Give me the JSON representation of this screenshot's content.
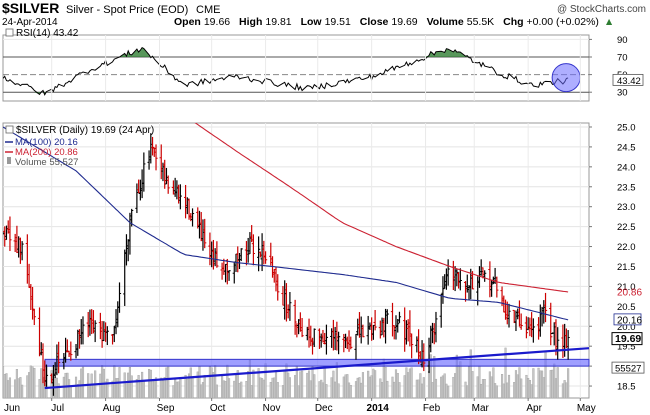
{
  "header": {
    "symbol": "$SILVER",
    "name": "Silver - Spot Price (EOD)",
    "exchange": "CME",
    "copyright": "@ StockCharts.com",
    "date": "24-Apr-2014",
    "quote": [
      {
        "label": "Open",
        "value": "19.66"
      },
      {
        "label": "High",
        "value": "19.81"
      },
      {
        "label": "Low",
        "value": "19.51"
      },
      {
        "label": "Close",
        "value": "19.69"
      },
      {
        "label": "Volume",
        "value": "55.5K"
      },
      {
        "label": "Chg",
        "value": "+0.00 (+0.02%)"
      }
    ],
    "chg_arrow": "▲"
  },
  "rsi_panel": {
    "label": "RSI(14) 43.42",
    "value_tag": "43.42",
    "ticks": [
      90,
      70,
      50,
      30
    ],
    "levels": {
      "overbought": 70,
      "oversold": 30,
      "mid": 50
    },
    "fill_color": "#2e7d32",
    "line_color": "#000000"
  },
  "price_panel": {
    "legend": [
      {
        "text": "$SILVER (Daily) 19.69 (24 Apr)",
        "color": "#000000",
        "icon": "none"
      },
      {
        "text": "MA(100) 20.16",
        "color": "#1f2b8f",
        "icon": "line"
      },
      {
        "text": "MA(200) 20.86",
        "color": "#cc2233",
        "icon": "line"
      },
      {
        "text": "Volume 55,527",
        "color": "#555555",
        "icon": "bar"
      }
    ],
    "close_tag": "19.69",
    "ma100_tag": "20.16",
    "ma200_tag": "20.86",
    "volume_tag": "55527",
    "colors": {
      "up": "#000000",
      "down": "#cc0000",
      "ma100": "#1f2b8f",
      "ma200": "#cc2233",
      "trendline": "#1a1acc",
      "support_band": "#6b6bff",
      "volume": "#bdbdbd"
    }
  },
  "chart_data": {
    "type": "ohlc",
    "title": "$SILVER (Daily)",
    "date_range": [
      "2013-06-03",
      "2014-04-24"
    ],
    "x_axis_labels": [
      "Jun",
      "Jul",
      "Aug",
      "Sep",
      "Oct",
      "Nov",
      "Dec",
      "2014",
      "Feb",
      "Mar",
      "Apr",
      "May"
    ],
    "y_axis_ticks": [
      25.0,
      24.5,
      24.0,
      23.5,
      23.0,
      22.5,
      22.0,
      21.5,
      21.0,
      20.5,
      20.0,
      19.5,
      19.0,
      18.5
    ],
    "y_axis_tick_labels": [
      "25.0",
      "24.5",
      "24.0",
      "23.5",
      "23.0",
      "22.5",
      "22.0",
      "21.5",
      "21.0",
      "20.5",
      "20.0",
      "19.5",
      "19.0",
      "18.5"
    ],
    "ylim": [
      18.2,
      25.1
    ],
    "close_anchors": [
      {
        "date": "2013-06-03",
        "close": 22.3
      },
      {
        "date": "2013-06-14",
        "close": 21.9
      },
      {
        "date": "2013-06-20",
        "close": 20.5
      },
      {
        "date": "2013-06-27",
        "close": 18.7
      },
      {
        "date": "2013-07-08",
        "close": 19.2
      },
      {
        "date": "2013-07-22",
        "close": 20.0
      },
      {
        "date": "2013-08-05",
        "close": 19.6
      },
      {
        "date": "2013-08-16",
        "close": 23.0
      },
      {
        "date": "2013-08-27",
        "close": 24.4
      },
      {
        "date": "2013-09-05",
        "close": 23.6
      },
      {
        "date": "2013-09-19",
        "close": 22.9
      },
      {
        "date": "2013-09-30",
        "close": 21.7
      },
      {
        "date": "2013-10-11",
        "close": 21.5
      },
      {
        "date": "2013-10-22",
        "close": 22.0
      },
      {
        "date": "2013-10-31",
        "close": 21.9
      },
      {
        "date": "2013-11-12",
        "close": 20.6
      },
      {
        "date": "2013-11-25",
        "close": 19.8
      },
      {
        "date": "2013-12-06",
        "close": 19.7
      },
      {
        "date": "2013-12-18",
        "close": 19.6
      },
      {
        "date": "2014-01-02",
        "close": 20.0
      },
      {
        "date": "2014-01-15",
        "close": 20.2
      },
      {
        "date": "2014-01-31",
        "close": 19.2
      },
      {
        "date": "2014-02-06",
        "close": 20.0
      },
      {
        "date": "2014-02-14",
        "close": 21.5
      },
      {
        "date": "2014-02-26",
        "close": 21.1
      },
      {
        "date": "2014-03-11",
        "close": 21.2
      },
      {
        "date": "2014-03-20",
        "close": 20.3
      },
      {
        "date": "2014-04-03",
        "close": 19.9
      },
      {
        "date": "2014-04-10",
        "close": 20.3
      },
      {
        "date": "2014-04-17",
        "close": 19.7
      },
      {
        "date": "2014-04-24",
        "close": 19.69
      }
    ],
    "ma100_anchors": [
      {
        "date": "2013-06-03",
        "value": 25.0
      },
      {
        "date": "2013-07-15",
        "value": 23.9
      },
      {
        "date": "2013-08-15",
        "value": 22.6
      },
      {
        "date": "2013-09-15",
        "value": 21.8
      },
      {
        "date": "2013-10-15",
        "value": 21.6
      },
      {
        "date": "2013-11-15",
        "value": 21.45
      },
      {
        "date": "2013-12-15",
        "value": 21.3
      },
      {
        "date": "2014-01-15",
        "value": 21.1
      },
      {
        "date": "2014-02-15",
        "value": 20.7
      },
      {
        "date": "2014-03-15",
        "value": 20.6
      },
      {
        "date": "2014-04-24",
        "value": 20.16
      }
    ],
    "ma200_anchors": [
      {
        "date": "2013-09-15",
        "value": 25.3
      },
      {
        "date": "2013-10-15",
        "value": 24.4
      },
      {
        "date": "2013-11-15",
        "value": 23.5
      },
      {
        "date": "2013-12-15",
        "value": 22.6
      },
      {
        "date": "2014-01-15",
        "value": 22.0
      },
      {
        "date": "2014-02-15",
        "value": 21.5
      },
      {
        "date": "2014-03-15",
        "value": 21.1
      },
      {
        "date": "2014-04-24",
        "value": 20.86
      }
    ],
    "rsi_anchors": [
      {
        "date": "2013-06-03",
        "value": 47
      },
      {
        "date": "2013-06-27",
        "value": 28
      },
      {
        "date": "2013-07-22",
        "value": 55
      },
      {
        "date": "2013-08-22",
        "value": 80
      },
      {
        "date": "2013-09-15",
        "value": 38
      },
      {
        "date": "2013-10-15",
        "value": 48
      },
      {
        "date": "2013-11-25",
        "value": 34
      },
      {
        "date": "2014-01-02",
        "value": 48
      },
      {
        "date": "2014-02-14",
        "value": 80
      },
      {
        "date": "2014-03-15",
        "value": 52
      },
      {
        "date": "2014-04-03",
        "value": 38
      },
      {
        "date": "2014-04-24",
        "value": 43.42
      }
    ],
    "volume_ylim": [
      0,
      200000
    ],
    "trendline": {
      "start": {
        "date": "2013-06-27",
        "value": 18.45
      },
      "end": {
        "date": "2014-05-05",
        "value": 19.45
      }
    },
    "support_band": {
      "low": 19.0,
      "high": 19.17
    }
  }
}
